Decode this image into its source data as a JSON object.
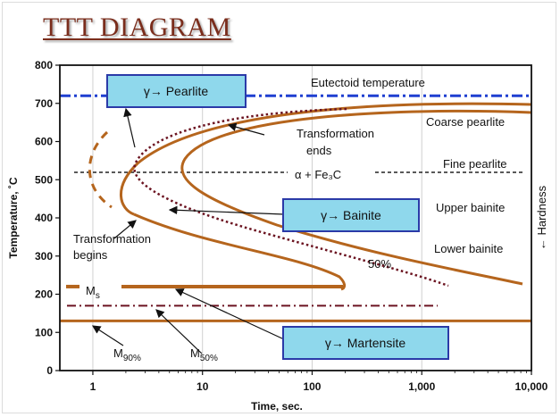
{
  "slide": {
    "title": "TTT DIAGRAM"
  },
  "colors": {
    "curve": "#b5651d",
    "dotted": "#6b1320",
    "eutectoid": "#1f3fd1",
    "box_fill": "#8fd8ec",
    "box_border": "#2b3aa8",
    "title": "#7a2d1c"
  },
  "chart_data": {
    "type": "line",
    "title": "",
    "xlabel": "Time, sec.",
    "ylabel": "Temperature, ˚C",
    "xscale": "log",
    "xlim": [
      0.5,
      10000
    ],
    "ylim": [
      0,
      800
    ],
    "x_ticks": [
      "1",
      "10",
      "100",
      "1,000",
      "10,000"
    ],
    "y_ticks": [
      "0",
      "100",
      "200",
      "300",
      "400",
      "500",
      "600",
      "700",
      "800"
    ],
    "grid": "vertical gridlines at 1, 10, 100, 1,000, 10,000",
    "series": [],
    "reference_lines": {
      "eutectoid": 720,
      "Ms": 220,
      "M50": 170,
      "M90": 130
    },
    "annotations": {
      "eutectoid": "Eutectoid temperature",
      "ends": [
        "Transformation",
        "ends"
      ],
      "begins": [
        "Transformation",
        "begins"
      ],
      "alpha_fe3c": "α + Fe₃C",
      "fifty": "50%",
      "coarse": "Coarse pearlite",
      "fine": "Fine pearlite",
      "upper": "Upper bainite",
      "lower": "Lower bainite",
      "hardness": "← Hardness",
      "ms": "M",
      "ms_sub": "s",
      "m90": "M",
      "m90_sub": "90%",
      "m50": "M",
      "m50_sub": "50%"
    },
    "boxes": {
      "pearlite": "γ→ Pearlite",
      "bainite": "γ→ Bainite",
      "martensite": "γ→ Martensite"
    }
  }
}
